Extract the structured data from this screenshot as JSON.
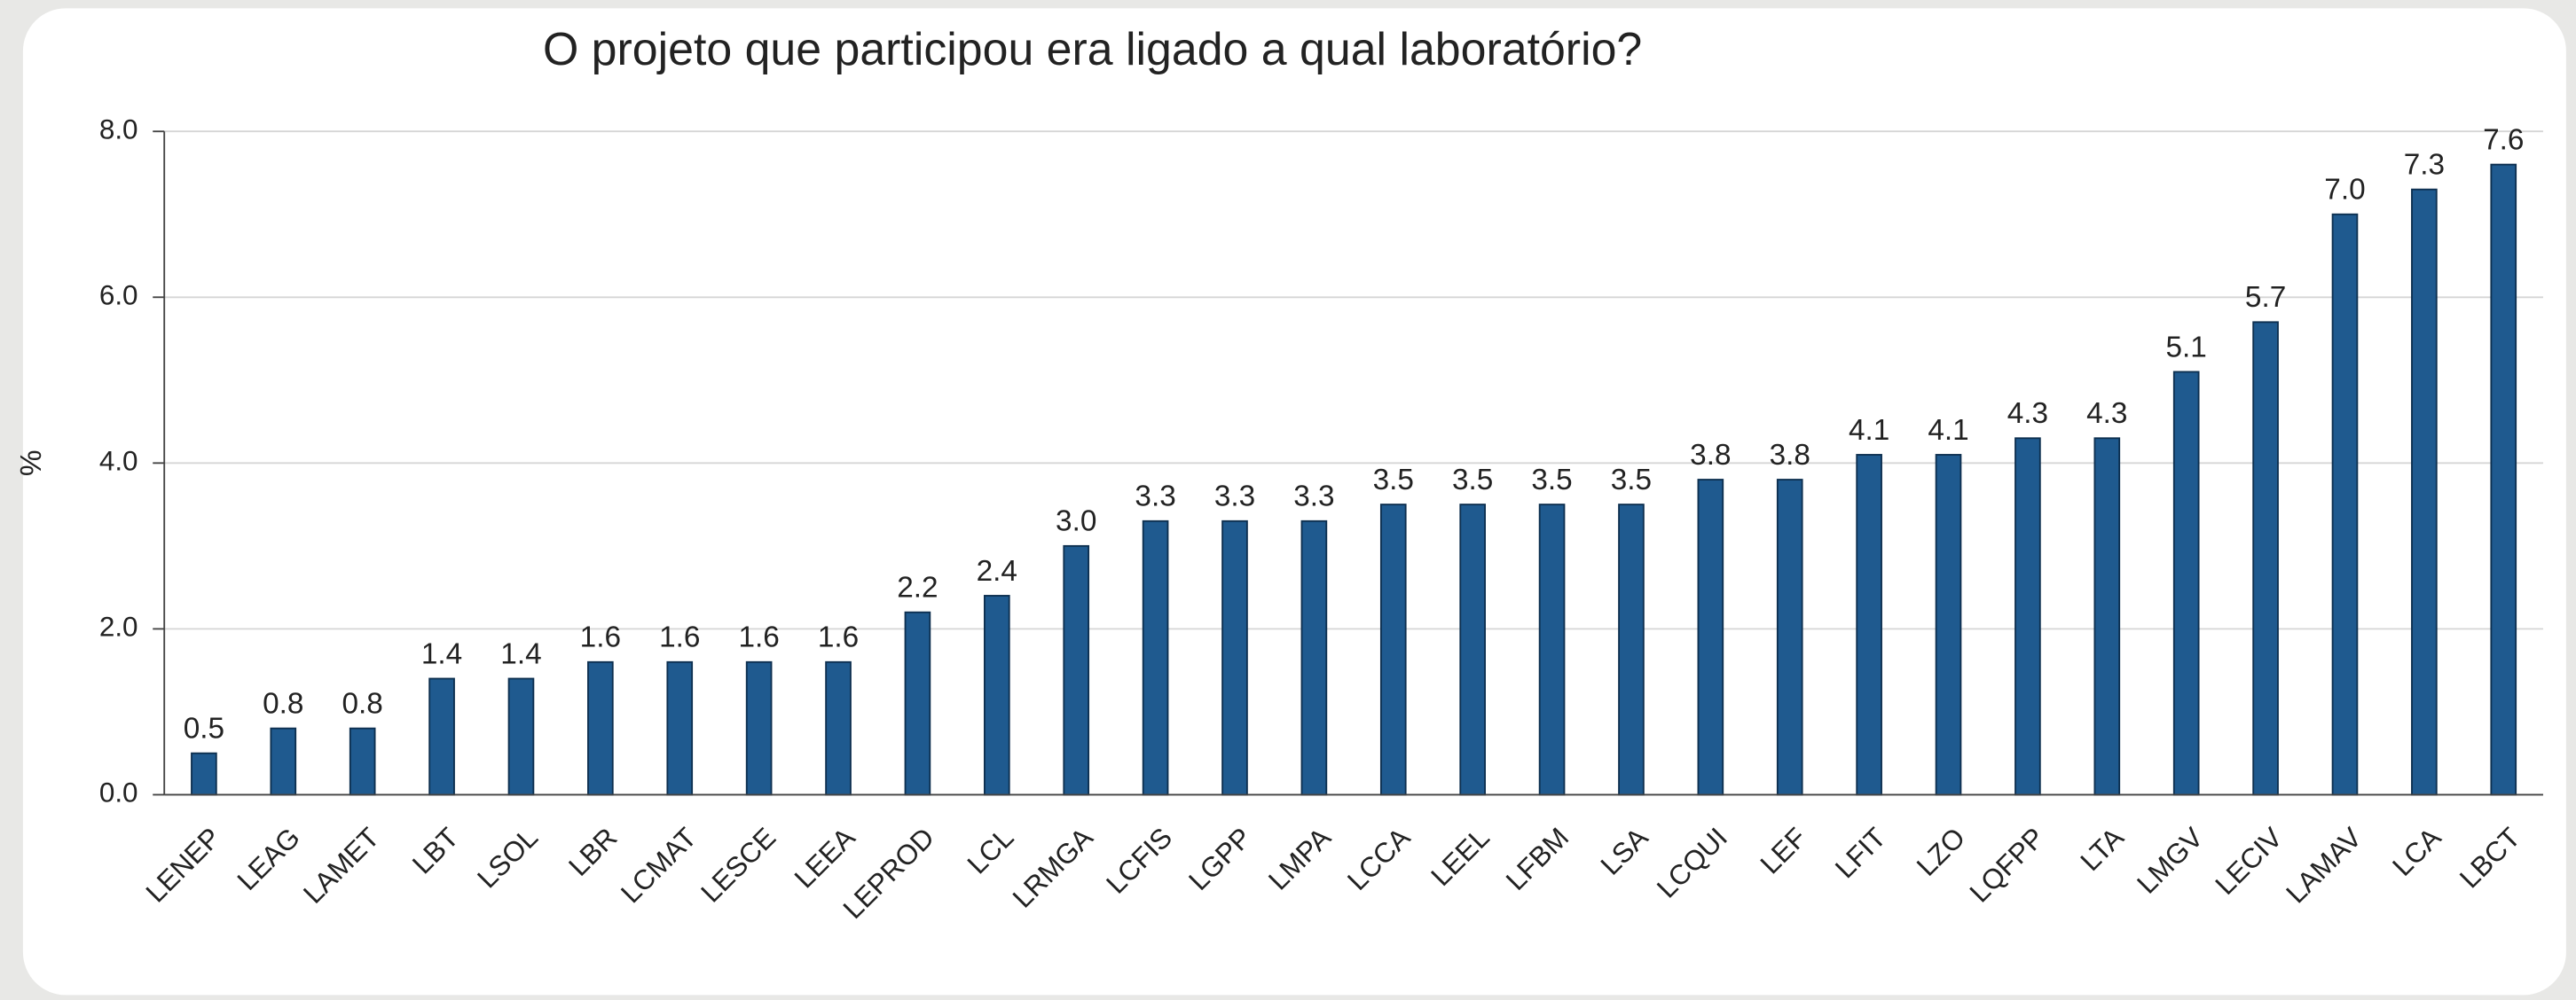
{
  "chart_data": {
    "type": "bar",
    "title": "O projeto que participou era ligado a qual laboratório?",
    "y_label": "%",
    "categories": [
      "LENEP",
      "LEAG",
      "LAMET",
      "LBT",
      "LSOL",
      "LBR",
      "LCMAT",
      "LESCE",
      "LEEA",
      "LEPROD",
      "LCL",
      "LRMGA",
      "LCFIS",
      "LGPP",
      "LMPA",
      "LCCA",
      "LEEL",
      "LFBM",
      "LSA",
      "LCQUI",
      "LEF",
      "LFIT",
      "LZO",
      "LQFPP",
      "LTA",
      "LMGV",
      "LECIV",
      "LAMAV",
      "LCA",
      "LBCT"
    ],
    "values": [
      0.5,
      0.8,
      0.8,
      1.4,
      1.4,
      1.6,
      1.6,
      1.6,
      1.6,
      2.2,
      2.4,
      3.0,
      3.3,
      3.3,
      3.3,
      3.5,
      3.5,
      3.5,
      3.5,
      3.8,
      3.8,
      4.1,
      4.1,
      4.3,
      4.3,
      5.1,
      5.7,
      7.0,
      7.3,
      7.6
    ],
    "value_labels": [
      "0.5",
      "0.8",
      "0.8",
      "1.4",
      "1.4",
      "1.6",
      "1.6",
      "1.6",
      "1.6",
      "2.2",
      "2.4",
      "3.0",
      "3.3",
      "3.3",
      "3.3",
      "3.5",
      "3.5",
      "3.5",
      "3.5",
      "3.8",
      "3.8",
      "4.1",
      "4.1",
      "4.3",
      "4.3",
      "5.1",
      "5.7",
      "7.0",
      "7.3",
      "7.6"
    ],
    "color": "#1f5a8f",
    "ylim": [
      0,
      8
    ],
    "yticks": [
      {
        "value": 0,
        "label": "0.0"
      },
      {
        "value": 2,
        "label": "2.0"
      },
      {
        "value": 4,
        "label": "4.0"
      },
      {
        "value": 6,
        "label": "6.0"
      },
      {
        "value": 8,
        "label": "8.0"
      }
    ],
    "grid": true
  }
}
